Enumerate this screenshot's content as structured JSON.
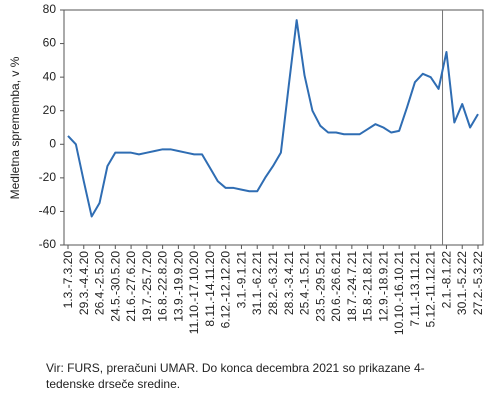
{
  "chart_data": {
    "type": "line",
    "y_label": "Medletna sprememba, v %",
    "note": "Vir: FURS, preračuni UMAR. Do konca decembra 2021 so prikazane 4-tedenske drseče sredine.",
    "categories": [
      "1.3.-7.3.20",
      null,
      "29.3.-4.4.20",
      null,
      "26.4.-2.5.20",
      null,
      "24.5.-30.5.20",
      null,
      "21.6.-27.6.20",
      null,
      "19.7.-25.7.20",
      null,
      "16.8.-22.8.20",
      null,
      "13.9.-19.9.20",
      null,
      "11.10.-17.10.20",
      null,
      "8.11.-14.11.20",
      null,
      "6.12.-12.12.20",
      null,
      "3.1.-9.1.21",
      null,
      "31.1.-6.2.21",
      null,
      "28.2.-6.3.21",
      null,
      "28.3.-3.4.21",
      null,
      "25.4.-1.5.21",
      null,
      "23.5.-29.5.21",
      null,
      "20.6.-26.6.21",
      null,
      "18.7.-24.7.21",
      null,
      "15.8.-21.8.21",
      null,
      "12.9.-18.9.21",
      null,
      "10.10.-16.10.21",
      null,
      "7.11.-13.11.21",
      null,
      "5.12.-11.12.21",
      null,
      "2.1.-8.1.22",
      null,
      "30.1.-5.2.22",
      null,
      "27.2.-5.3.22"
    ],
    "series": [
      {
        "color": "#2f6db3",
        "values": [
          5,
          0,
          -22,
          -43,
          -35,
          -13,
          -5,
          -5,
          -5,
          -6,
          -5,
          -4,
          -3,
          -3,
          -4,
          -5,
          -6,
          -6,
          -14,
          -22,
          -26,
          -26,
          -27,
          -28,
          -28,
          -20,
          -13,
          -5,
          35,
          74,
          41,
          20,
          11,
          7,
          7,
          6,
          6,
          6,
          9,
          12,
          10,
          7,
          8,
          22,
          37,
          42,
          40,
          33,
          55,
          13,
          24,
          10,
          18
        ]
      }
    ],
    "ylim": [
      -60,
      80
    ],
    "yticks": [
      -60,
      -40,
      -20,
      0,
      20,
      40,
      60,
      80
    ],
    "grid": false
  }
}
